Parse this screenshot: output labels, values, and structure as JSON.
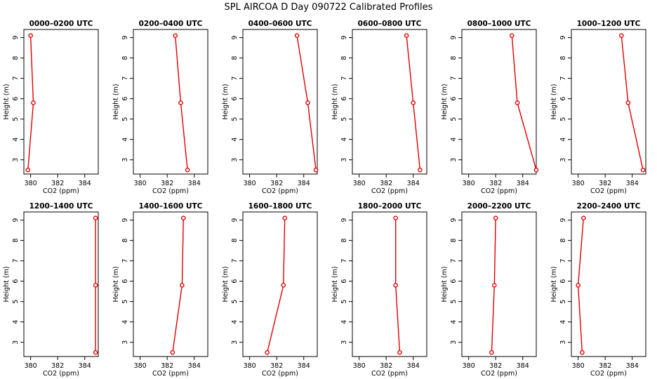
{
  "title": "SPL AIRCOA D  Day 090722  Calibrated Profiles",
  "colors": {
    "series": "#e00000",
    "axis": "#000000",
    "background": "#ffffff"
  },
  "chart_data": [
    {
      "type": "line",
      "title": "0000–0200 UTC",
      "xlabel": "CO2 (ppm)",
      "ylabel": "Height (m)",
      "xlim": [
        379.5,
        385
      ],
      "ylim": [
        2.3,
        9.4
      ],
      "xticks": [
        380,
        382,
        384
      ],
      "yticks": [
        3,
        4,
        5,
        6,
        7,
        8,
        9
      ],
      "grid": false,
      "series": [
        {
          "x": [
            380.0,
            380.2,
            379.8
          ],
          "y": [
            9.1,
            5.8,
            2.5
          ]
        }
      ]
    },
    {
      "type": "line",
      "title": "0200–0400 UTC",
      "xlabel": "CO2 (ppm)",
      "ylabel": "Height (m)",
      "xlim": [
        379.5,
        385
      ],
      "ylim": [
        2.3,
        9.4
      ],
      "xticks": [
        380,
        382,
        384
      ],
      "yticks": [
        3,
        4,
        5,
        6,
        7,
        8,
        9
      ],
      "grid": false,
      "series": [
        {
          "x": [
            382.6,
            383.0,
            383.5
          ],
          "y": [
            9.1,
            5.8,
            2.5
          ]
        }
      ]
    },
    {
      "type": "line",
      "title": "0400–0600 UTC",
      "xlabel": "CO2 (ppm)",
      "ylabel": "Height (m)",
      "xlim": [
        379.5,
        385
      ],
      "ylim": [
        2.3,
        9.4
      ],
      "xticks": [
        380,
        382,
        384
      ],
      "yticks": [
        3,
        4,
        5,
        6,
        7,
        8,
        9
      ],
      "grid": false,
      "series": [
        {
          "x": [
            383.5,
            384.3,
            384.9
          ],
          "y": [
            9.1,
            5.8,
            2.5
          ]
        }
      ]
    },
    {
      "type": "line",
      "title": "0600–0800 UTC",
      "xlabel": "CO2 (ppm)",
      "ylabel": "Height (m)",
      "xlim": [
        379.5,
        385
      ],
      "ylim": [
        2.3,
        9.4
      ],
      "xticks": [
        380,
        382,
        384
      ],
      "yticks": [
        3,
        4,
        5,
        6,
        7,
        8,
        9
      ],
      "grid": false,
      "series": [
        {
          "x": [
            383.5,
            384.0,
            384.5
          ],
          "y": [
            9.1,
            5.8,
            2.5
          ]
        }
      ]
    },
    {
      "type": "line",
      "title": "0800–1000 UTC",
      "xlabel": "CO2 (ppm)",
      "ylabel": "Height (m)",
      "xlim": [
        379.5,
        385
      ],
      "ylim": [
        2.3,
        9.4
      ],
      "xticks": [
        380,
        382,
        384
      ],
      "yticks": [
        3,
        4,
        5,
        6,
        7,
        8,
        9
      ],
      "grid": false,
      "series": [
        {
          "x": [
            383.2,
            383.6,
            385.0
          ],
          "y": [
            9.1,
            5.8,
            2.5
          ]
        }
      ]
    },
    {
      "type": "line",
      "title": "1000–1200 UTC",
      "xlabel": "CO2 (ppm)",
      "ylabel": "Height (m)",
      "xlim": [
        379.5,
        385
      ],
      "ylim": [
        2.3,
        9.4
      ],
      "xticks": [
        380,
        382,
        384
      ],
      "yticks": [
        3,
        4,
        5,
        6,
        7,
        8,
        9
      ],
      "grid": false,
      "series": [
        {
          "x": [
            383.2,
            383.7,
            384.8
          ],
          "y": [
            9.1,
            5.8,
            2.5
          ]
        }
      ]
    },
    {
      "type": "line",
      "title": "1200–1400 UTC",
      "xlabel": "CO2 (ppm)",
      "ylabel": "Height (m)",
      "xlim": [
        379.5,
        385
      ],
      "ylim": [
        2.3,
        9.4
      ],
      "xticks": [
        380,
        382,
        384
      ],
      "yticks": [
        3,
        4,
        5,
        6,
        7,
        8,
        9
      ],
      "grid": false,
      "series": [
        {
          "x": [
            384.8,
            384.8,
            384.8
          ],
          "y": [
            9.1,
            5.8,
            2.5
          ]
        }
      ]
    },
    {
      "type": "line",
      "title": "1400–1600 UTC",
      "xlabel": "CO2 (ppm)",
      "ylabel": "Height (m)",
      "xlim": [
        379.5,
        385
      ],
      "ylim": [
        2.3,
        9.4
      ],
      "xticks": [
        380,
        382,
        384
      ],
      "yticks": [
        3,
        4,
        5,
        6,
        7,
        8,
        9
      ],
      "grid": false,
      "series": [
        {
          "x": [
            383.2,
            383.1,
            382.4
          ],
          "y": [
            9.1,
            5.8,
            2.5
          ]
        }
      ]
    },
    {
      "type": "line",
      "title": "1600–1800 UTC",
      "xlabel": "CO2 (ppm)",
      "ylabel": "Height (m)",
      "xlim": [
        379.5,
        385
      ],
      "ylim": [
        2.3,
        9.4
      ],
      "xticks": [
        380,
        382,
        384
      ],
      "yticks": [
        3,
        4,
        5,
        6,
        7,
        8,
        9
      ],
      "grid": false,
      "series": [
        {
          "x": [
            382.6,
            382.5,
            381.3
          ],
          "y": [
            9.1,
            5.8,
            2.5
          ]
        }
      ]
    },
    {
      "type": "line",
      "title": "1800–2000 UTC",
      "xlabel": "CO2 (ppm)",
      "ylabel": "Height (m)",
      "xlim": [
        379.5,
        385
      ],
      "ylim": [
        2.3,
        9.4
      ],
      "xticks": [
        380,
        382,
        384
      ],
      "yticks": [
        3,
        4,
        5,
        6,
        7,
        8,
        9
      ],
      "grid": false,
      "series": [
        {
          "x": [
            382.7,
            382.7,
            383.0
          ],
          "y": [
            9.1,
            5.8,
            2.5
          ]
        }
      ]
    },
    {
      "type": "line",
      "title": "2000–2200 UTC",
      "xlabel": "CO2 (ppm)",
      "ylabel": "Height (m)",
      "xlim": [
        379.5,
        385
      ],
      "ylim": [
        2.3,
        9.4
      ],
      "xticks": [
        380,
        382,
        384
      ],
      "yticks": [
        3,
        4,
        5,
        6,
        7,
        8,
        9
      ],
      "grid": false,
      "series": [
        {
          "x": [
            382.0,
            381.9,
            381.7
          ],
          "y": [
            9.1,
            5.8,
            2.5
          ]
        }
      ]
    },
    {
      "type": "line",
      "title": "2200–2400 UTC",
      "xlabel": "CO2 (ppm)",
      "ylabel": "Height (m)",
      "xlim": [
        379.5,
        385
      ],
      "ylim": [
        2.3,
        9.4
      ],
      "xticks": [
        380,
        382,
        384
      ],
      "yticks": [
        3,
        4,
        5,
        6,
        7,
        8,
        9
      ],
      "grid": false,
      "series": [
        {
          "x": [
            380.4,
            380.0,
            380.3
          ],
          "y": [
            9.1,
            5.8,
            2.5
          ]
        }
      ]
    }
  ]
}
